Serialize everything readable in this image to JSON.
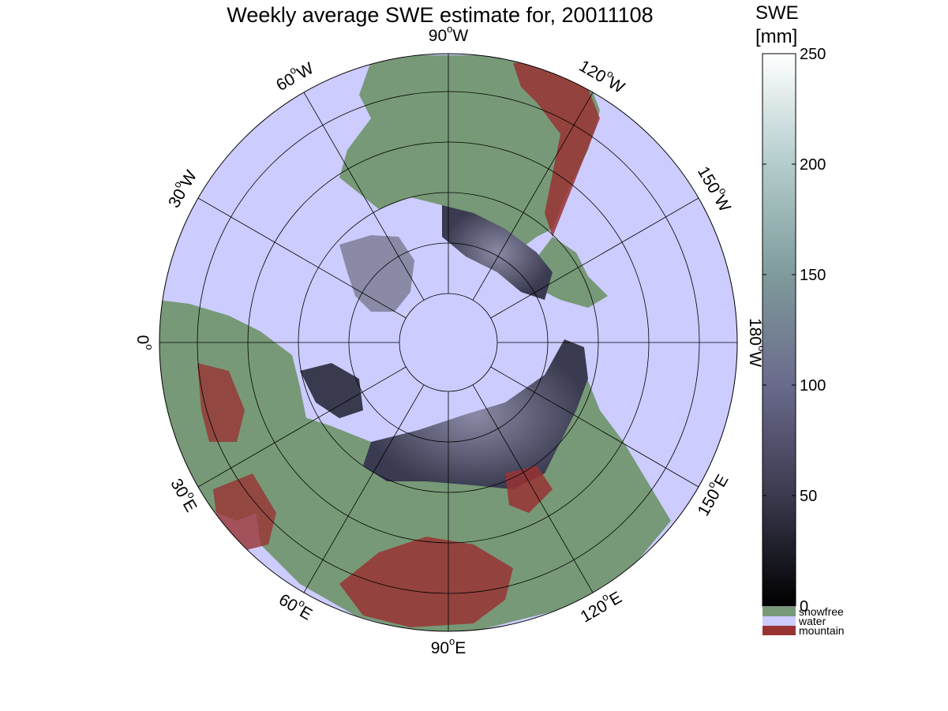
{
  "title": "Weekly average SWE estimate for, 20011108",
  "colorbar": {
    "label_line1": "SWE",
    "label_line2": "[mm]",
    "min": 0,
    "max": 250,
    "ticks": [
      "0",
      "50",
      "100",
      "150",
      "200",
      "250"
    ]
  },
  "legend": [
    {
      "label": "snowfree",
      "color": "#779977"
    },
    {
      "label": "water",
      "color": "#ccccff"
    },
    {
      "label": "mountain",
      "color": "#993333"
    }
  ],
  "longitude_labels": [
    {
      "text": "90",
      "suffix": "W"
    },
    {
      "text": "120",
      "suffix": "W"
    },
    {
      "text": "150",
      "suffix": "W"
    },
    {
      "text": "180",
      "suffix": "W"
    },
    {
      "text": "150",
      "suffix": "E"
    },
    {
      "text": "120",
      "suffix": "E"
    },
    {
      "text": "90",
      "suffix": "E"
    },
    {
      "text": "60",
      "suffix": "E"
    },
    {
      "text": "30",
      "suffix": "E"
    },
    {
      "text": "0",
      "suffix": ""
    },
    {
      "text": "30",
      "suffix": "W"
    },
    {
      "text": "60",
      "suffix": "W"
    }
  ],
  "colors": {
    "water": "#ccccff",
    "snowfree": "#779977",
    "mountain": "#993333",
    "grid": "#000000"
  }
}
